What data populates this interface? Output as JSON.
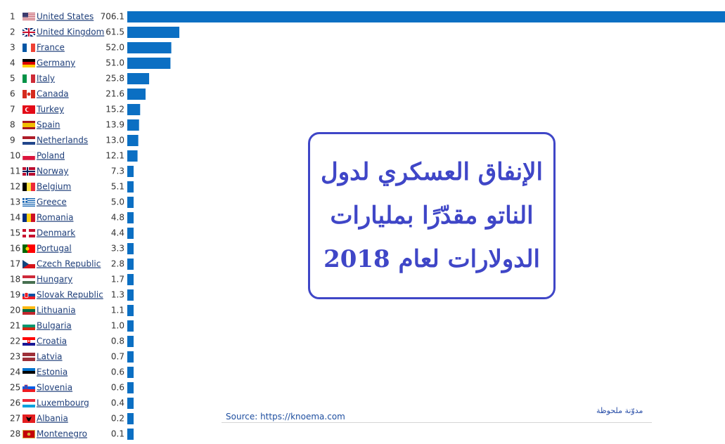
{
  "title_lines": [
    "الإنفاق العسكري لدول",
    "الناتو مقدّرًا بمليارات",
    "الدولارات لعام 2018"
  ],
  "source": "Source: https://knoema.com",
  "blog_name": "مدوّنة ملحوظة",
  "colors": {
    "bar": "#0b6fc3",
    "title": "#3f46c7",
    "link": "#1f3f7a"
  },
  "chart_data": {
    "type": "bar",
    "orientation": "horizontal",
    "ranks": [
      "1",
      "2",
      "3",
      "4",
      "5",
      "6",
      "7",
      "8",
      "9",
      "10",
      "11",
      "12",
      "13",
      "14",
      "15",
      "16",
      "17",
      "18",
      "19",
      "20",
      "21",
      "22",
      "23",
      "24",
      "25",
      "26",
      "27",
      "28"
    ],
    "categories": [
      "United States",
      "United Kingdom",
      "France",
      "Germany",
      "Italy",
      "Canada",
      "Turkey",
      "Spain",
      "Netherlands",
      "Poland",
      "Norway",
      "Belgium",
      "Greece",
      "Romania",
      "Denmark",
      "Portugal",
      "Czech Republic",
      "Hungary",
      "Slovak Republic",
      "Lithuania",
      "Bulgaria",
      "Croatia",
      "Latvia",
      "Estonia",
      "Slovenia",
      "Luxembourg",
      "Albania",
      "Montenegro"
    ],
    "values": [
      706.1,
      61.5,
      52.0,
      51.0,
      25.8,
      21.6,
      15.2,
      13.9,
      13.0,
      12.1,
      7.3,
      5.1,
      5.0,
      4.8,
      4.4,
      3.3,
      2.8,
      1.7,
      1.3,
      1.1,
      1.0,
      0.8,
      0.7,
      0.6,
      0.6,
      0.4,
      0.2,
      0.1
    ],
    "value_labels": [
      "706.1",
      "61.5",
      "52.0",
      "51.0",
      "25.8",
      "21.6",
      "15.2",
      "13.9",
      "13.0",
      "12.1",
      "7.3",
      "5.1",
      "5.0",
      "4.8",
      "4.4",
      "3.3",
      "2.8",
      "1.7",
      "1.3",
      "1.1",
      "1.0",
      "0.8",
      "0.7",
      "0.6",
      "0.6",
      "0.4",
      "0.2",
      "0.1"
    ],
    "flag_icons": [
      "flag-us",
      "flag-gb",
      "flag-fr",
      "flag-de",
      "flag-it",
      "flag-ca",
      "flag-tr",
      "flag-es",
      "flag-nl",
      "flag-pl",
      "flag-no",
      "flag-be",
      "flag-gr",
      "flag-ro",
      "flag-dk",
      "flag-pt",
      "flag-cz",
      "flag-hu",
      "flag-sk",
      "flag-lt",
      "flag-bg",
      "flag-hr",
      "flag-lv",
      "flag-ee",
      "flag-si",
      "flag-lu",
      "flag-al",
      "flag-me"
    ],
    "xlim": [
      0,
      706.1
    ]
  }
}
